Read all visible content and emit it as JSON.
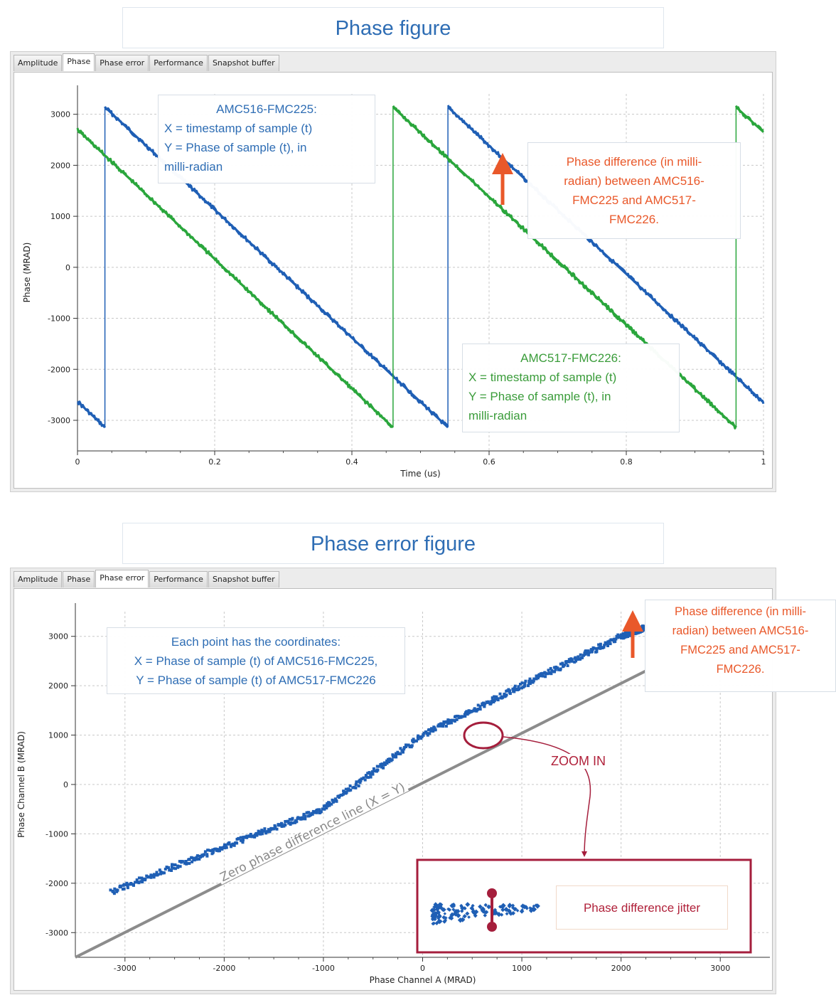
{
  "top_title": "Phase figure",
  "bottom_title": "Phase error figure",
  "tabs": [
    {
      "label": "Amplitude"
    },
    {
      "label": "Phase"
    },
    {
      "label": "Phase error"
    },
    {
      "label": "Performance"
    },
    {
      "label": "Snapshot buffer"
    }
  ],
  "colors": {
    "series_a": "#1f5fb5",
    "series_b": "#2aa63c",
    "annotation": "#e9582a",
    "zoom": "#a51e3c",
    "zero_line": "#8c8c8c"
  },
  "annotations": {
    "amc516": {
      "title": "AMC516-FMC225:",
      "line1": "X = timestamp of sample (t)",
      "line2": "Y = Phase of sample (t), in",
      "line3": "milli-radian"
    },
    "amc517": {
      "title": "AMC517-FMC226:",
      "line1": "X = timestamp of sample (t)",
      "line2": "Y = Phase of sample (t), in",
      "line3": "milli-radian"
    },
    "phase_diff_top": {
      "line1": "Phase difference (in milli-",
      "line2": "radian) between AMC516-",
      "line3": "FMC225 and AMC517-",
      "line4": "FMC226."
    },
    "phase_diff_bottom": {
      "line1": "Phase difference (in milli-",
      "line2": "radian) between AMC516-",
      "line3": "FMC225 and AMC517-",
      "line4": "FMC226."
    },
    "each_point": {
      "line1": "Each point has the coordinates:",
      "line2": "X = Phase of sample (t) of AMC516-FMC225,",
      "line3": "Y = Phase of sample (t) of AMC517-FMC226"
    },
    "zero_line_label": "Zero phase difference line (X = Y)",
    "zoom_in": "ZOOM IN",
    "jitter": "Phase difference jitter"
  },
  "chart_data": [
    {
      "type": "line",
      "xlabel": "Time (us)",
      "ylabel": "Phase (MRAD)",
      "xlim": [
        0,
        1
      ],
      "ylim": [
        -3600,
        3400
      ],
      "xticks": [
        0,
        0.2,
        0.4,
        0.6,
        0.8,
        1
      ],
      "xtick_labels": [
        "0",
        "0.2",
        "0.4",
        "0.6",
        "0.8",
        "1"
      ],
      "yticks": [
        -3000,
        -2000,
        -1000,
        0,
        1000,
        2000,
        3000
      ],
      "ytick_labels": [
        "-3000",
        "-2000",
        "-1000",
        "0",
        "1000",
        "2000",
        "3000"
      ],
      "grid": true,
      "series": [
        {
          "x": [
            0,
            0.04,
            0.04,
            0.54,
            0.54,
            1.0
          ],
          "y": [
            -2630,
            -3140,
            3140,
            -3140,
            3140,
            -2650
          ]
        },
        {
          "x": [
            0,
            0.46,
            0.46,
            0.96,
            0.96,
            1.0
          ],
          "y": [
            2700,
            -3140,
            3140,
            -3140,
            3140,
            2650
          ]
        }
      ]
    },
    {
      "type": "scatter",
      "xlabel": "Phase Channel A (MRAD)",
      "ylabel": "Phase Channel B (MRAD)",
      "xlim": [
        -3500,
        3500
      ],
      "ylim": [
        -3500,
        3500
      ],
      "xticks": [
        -3000,
        -2000,
        -1000,
        0,
        1000,
        2000,
        3000
      ],
      "xtick_labels": [
        "-3000",
        "-2000",
        "-1000",
        "0",
        "1000",
        "2000",
        "3000"
      ],
      "yticks": [
        -3000,
        -2000,
        -1000,
        0,
        1000,
        2000,
        3000
      ],
      "ytick_labels": [
        "-3000",
        "-2000",
        "-1000",
        "0",
        "1000",
        "2000",
        "3000"
      ],
      "grid": true,
      "series": [
        {
          "x": [
            -3140,
            -2000,
            -1000,
            0,
            1000,
            2000,
            2250
          ],
          "y": [
            -2180,
            -1260,
            -500,
            1000,
            2000,
            3000,
            3180
          ]
        }
      ],
      "zero_line": {
        "x": [
          -3500,
          2250
        ],
        "y": [
          -3500,
          2300
        ]
      }
    }
  ]
}
